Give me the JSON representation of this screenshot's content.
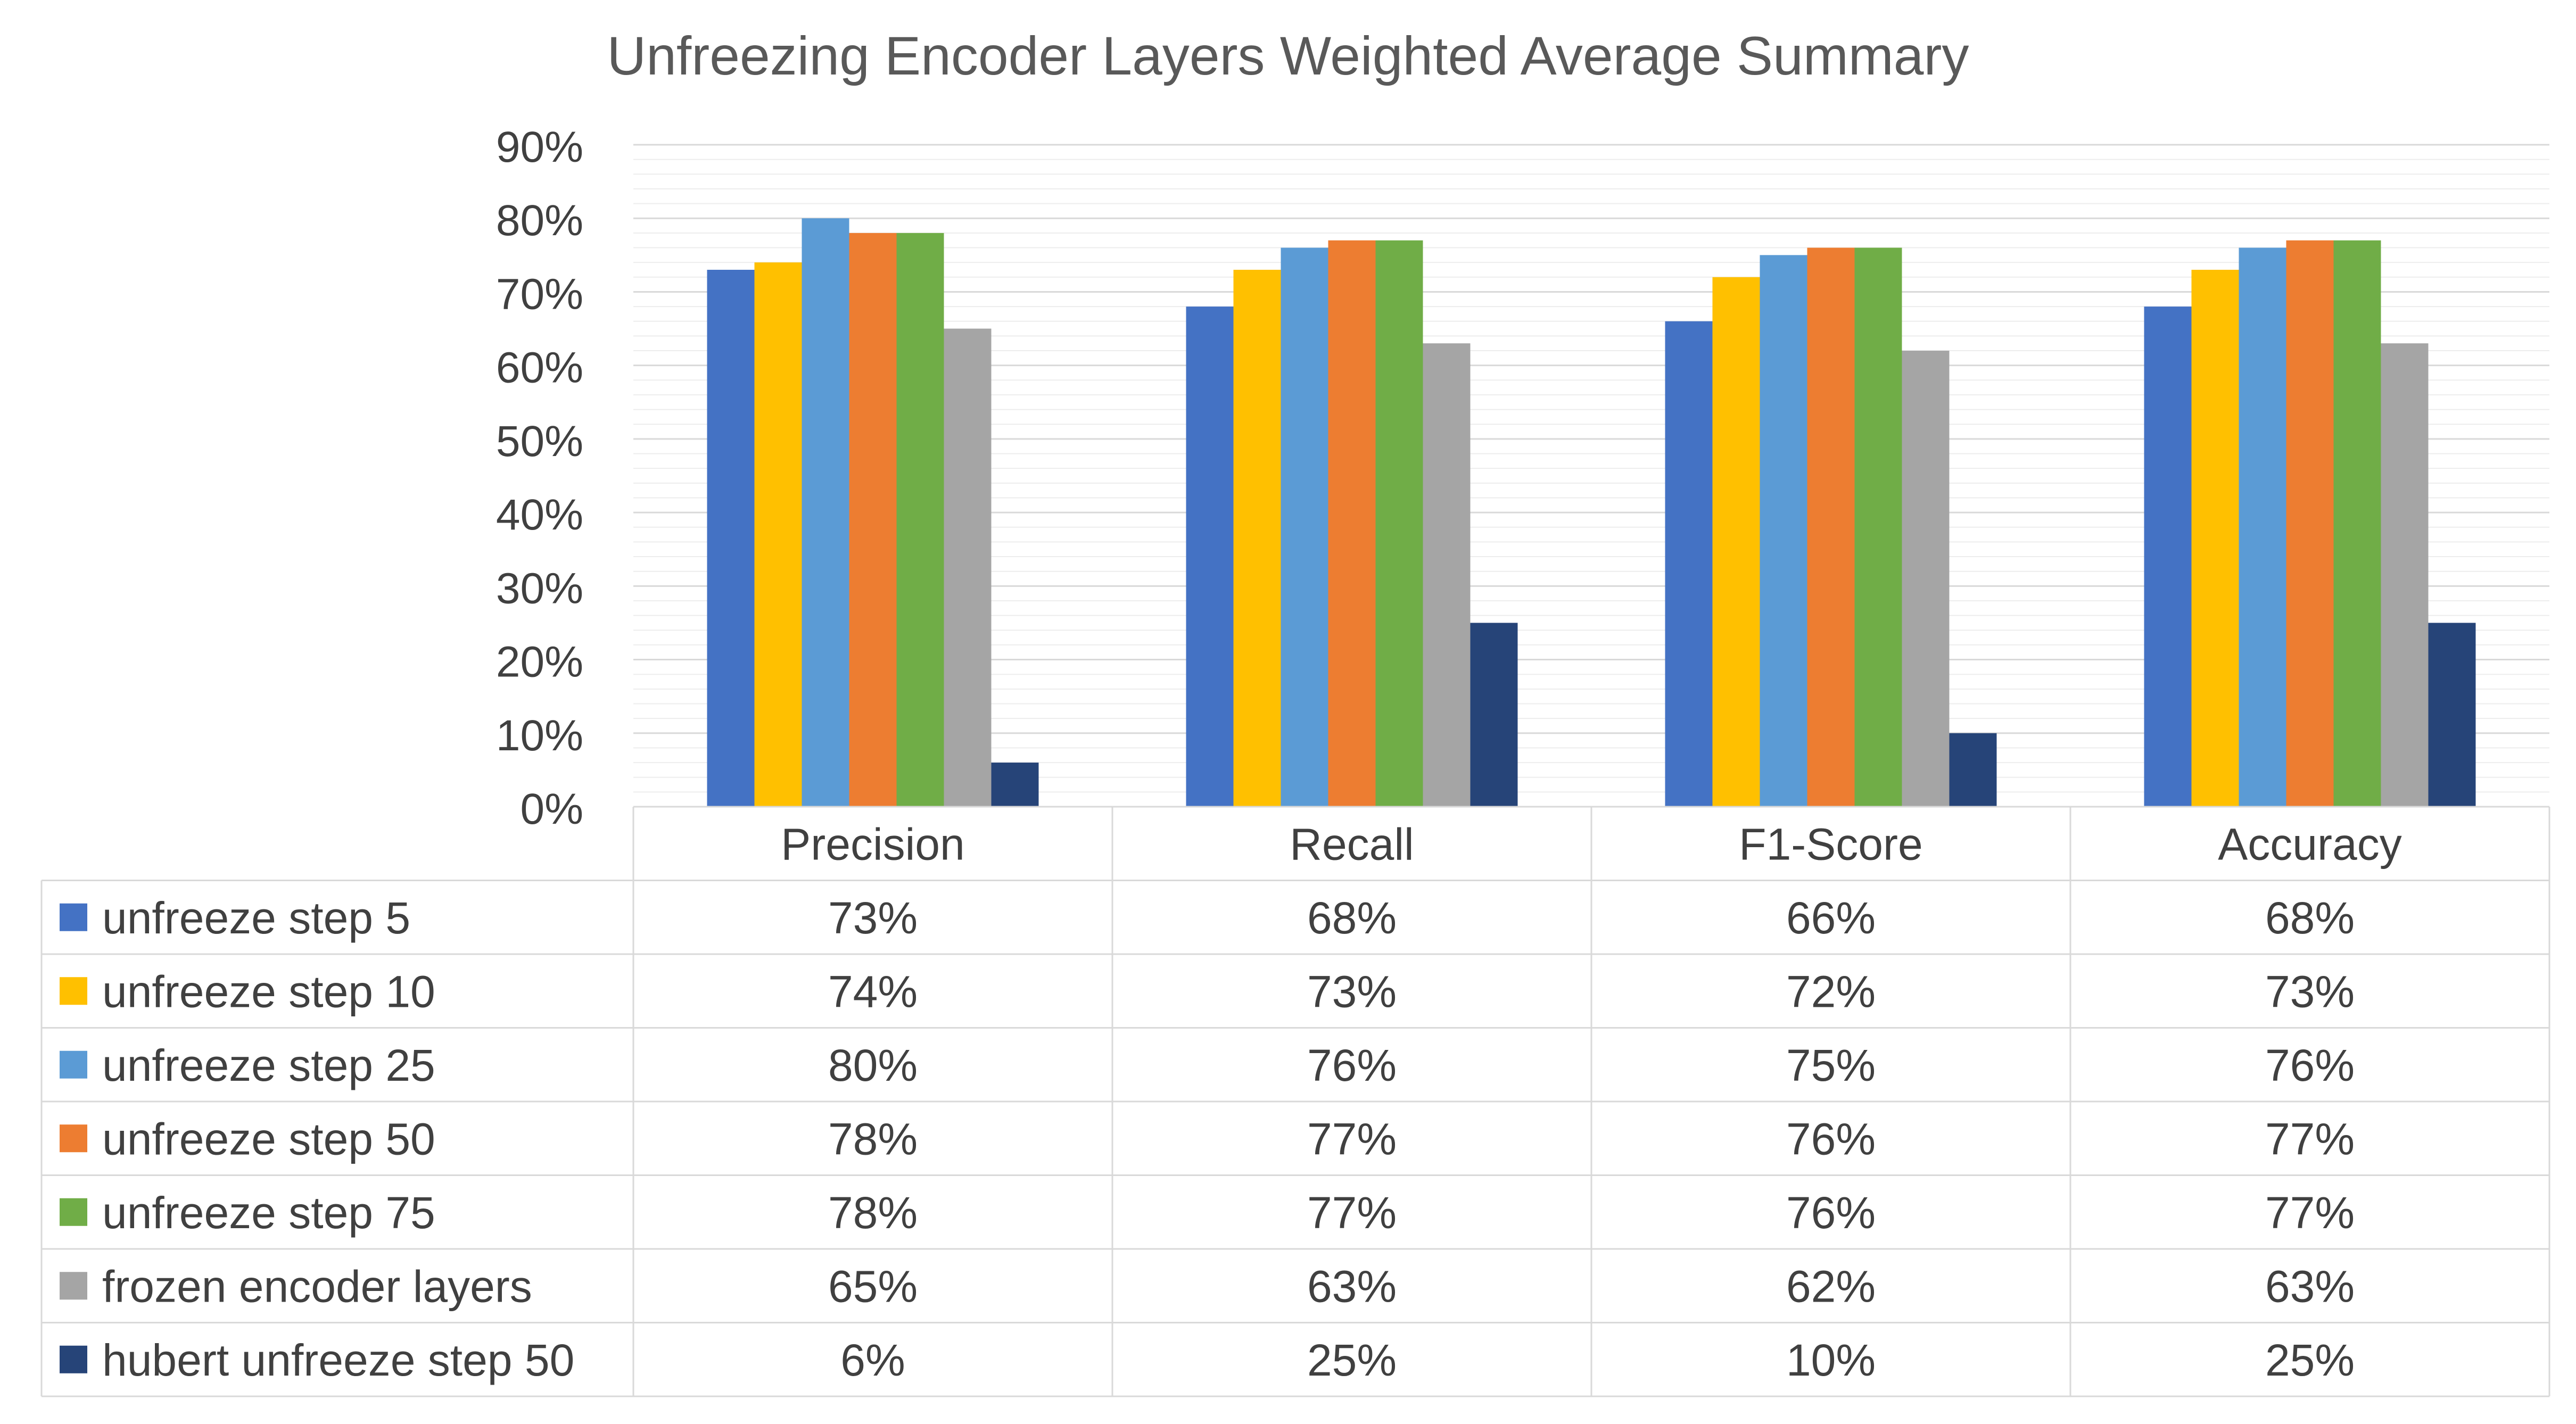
{
  "chart_data": {
    "type": "bar",
    "title": "Unfreezing Encoder Layers Weighted Average Summary",
    "xlabel": "",
    "ylabel": "",
    "ylim": [
      0,
      90
    ],
    "y_tick_step": 10,
    "y_tick_labels": [
      "0%",
      "10%",
      "20%",
      "30%",
      "40%",
      "50%",
      "60%",
      "70%",
      "80%",
      "90%"
    ],
    "grid": true,
    "legend": "data-table-below",
    "categories": [
      "Precision",
      "Recall",
      "F1-Score",
      "Accuracy"
    ],
    "series": [
      {
        "name": "unfreeze step 5",
        "color": "#4472C4",
        "values": [
          73,
          68,
          66,
          68
        ],
        "labels": [
          "73%",
          "68%",
          "66%",
          "68%"
        ]
      },
      {
        "name": "unfreeze step 10",
        "color": "#FFC000",
        "values": [
          74,
          73,
          72,
          73
        ],
        "labels": [
          "74%",
          "73%",
          "72%",
          "73%"
        ]
      },
      {
        "name": "unfreeze step 25",
        "color": "#5B9BD5",
        "values": [
          80,
          76,
          75,
          76
        ],
        "labels": [
          "80%",
          "76%",
          "75%",
          "76%"
        ]
      },
      {
        "name": "unfreeze step 50",
        "color": "#ED7D31",
        "values": [
          78,
          77,
          76,
          77
        ],
        "labels": [
          "78%",
          "77%",
          "76%",
          "77%"
        ]
      },
      {
        "name": "unfreeze step 75",
        "color": "#70AD47",
        "values": [
          78,
          77,
          76,
          77
        ],
        "labels": [
          "78%",
          "77%",
          "76%",
          "77%"
        ]
      },
      {
        "name": "frozen encoder layers",
        "color": "#A5A5A5",
        "values": [
          65,
          63,
          62,
          63
        ],
        "labels": [
          "65%",
          "63%",
          "62%",
          "63%"
        ]
      },
      {
        "name": "hubert unfreeze step 50",
        "color": "#264478",
        "values": [
          6,
          25,
          10,
          25
        ],
        "labels": [
          "6%",
          "25%",
          "10%",
          "25%"
        ]
      }
    ]
  },
  "colors": {
    "background": "#FFFFFF",
    "text": "#404040",
    "title": "#595959",
    "major_grid": "#D9D9D9",
    "minor_grid": "#EDEDED",
    "table_border": "#D9D9D9"
  }
}
